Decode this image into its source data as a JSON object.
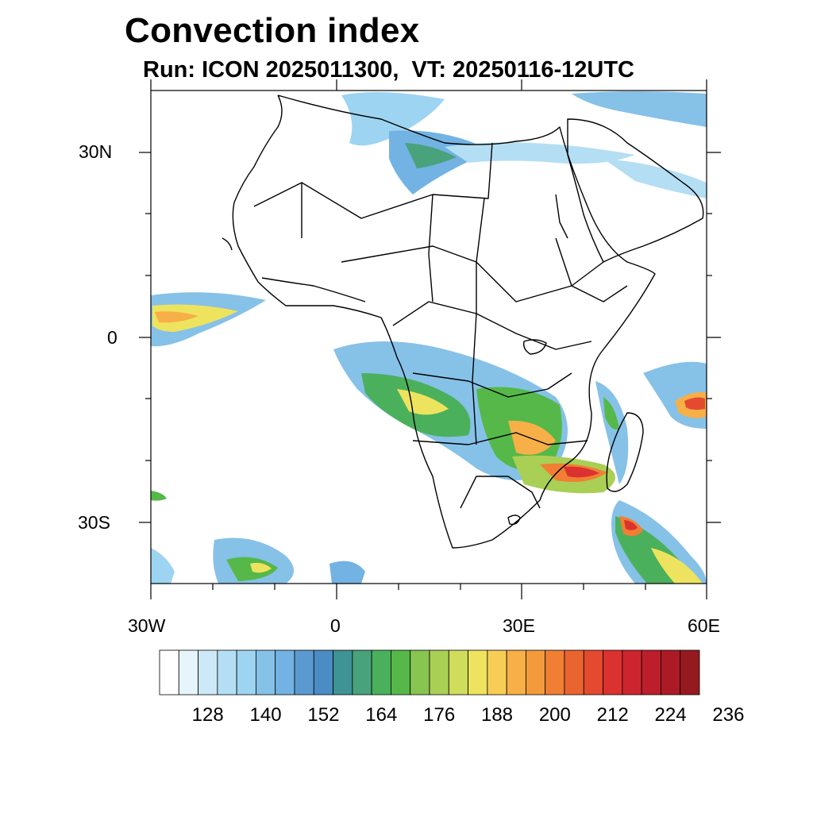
{
  "title": "Convection index",
  "subtitle": "Run: ICON 2025011300,  VT: 20250116-12UTC",
  "map": {
    "region": "Africa",
    "lon_range": [
      -30,
      60
    ],
    "lat_range": [
      -40,
      40
    ],
    "lat_tick_labels": [
      "30N",
      "0",
      "30S"
    ],
    "lon_tick_labels": [
      "30W",
      "0",
      "30E",
      "60E"
    ]
  },
  "colorbar": {
    "label_values": [
      "128",
      "140",
      "152",
      "164",
      "176",
      "188",
      "200",
      "212",
      "224",
      "236"
    ],
    "colors": [
      "#ffffff",
      "#e6f4fb",
      "#cde9f7",
      "#b4def3",
      "#9dd4f1",
      "#86c1e8",
      "#72b3e3",
      "#5a9ad0",
      "#4a8cc3",
      "#3f9394",
      "#48a27c",
      "#4bb05c",
      "#55b848",
      "#88c450",
      "#a9cf55",
      "#d0dc5c",
      "#eee35e",
      "#f8cd56",
      "#f7af47",
      "#f39a3d",
      "#f07f33",
      "#ea6430",
      "#e44a2f",
      "#dc322f",
      "#cd2530",
      "#bc1e2b",
      "#ac1b25",
      "#951a1f"
    ]
  }
}
